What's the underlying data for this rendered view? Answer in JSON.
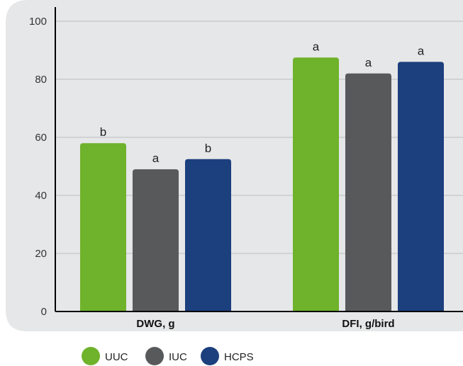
{
  "chart_data": {
    "type": "bar",
    "title": "",
    "xlabel": "",
    "ylabel": "",
    "ylim": [
      0,
      100
    ],
    "yticks": [
      0,
      20,
      40,
      60,
      80,
      100
    ],
    "grid": true,
    "legend_position": "bottom",
    "categories": [
      "DWG, g",
      "DFI, g/bird"
    ],
    "series": [
      {
        "name": "UUC",
        "color": "#6fb22b",
        "values": [
          58,
          87.5
        ],
        "labels": [
          "b",
          "a"
        ]
      },
      {
        "name": "IUC",
        "color": "#58595b",
        "values": [
          49,
          82
        ],
        "labels": [
          "a",
          "a"
        ]
      },
      {
        "name": "HCPS",
        "color": "#1c3f7d",
        "values": [
          52.5,
          86
        ],
        "labels": [
          "b",
          "a"
        ]
      }
    ]
  },
  "colors": {
    "panel_background": "#e6e7e8",
    "gridline": "#bcbec0",
    "axis": "#000000"
  }
}
